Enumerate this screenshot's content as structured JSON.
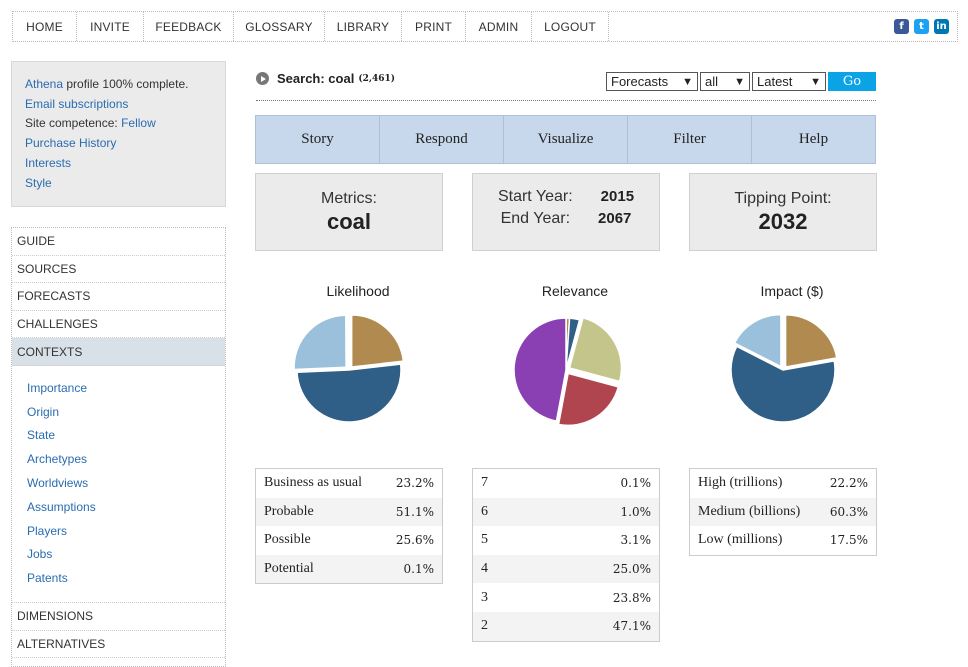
{
  "topnav": {
    "items": [
      "HOME",
      "INVITE",
      "FEEDBACK",
      "GLOSSARY",
      "LIBRARY",
      "PRINT",
      "ADMIN",
      "LOGOUT"
    ],
    "social": [
      {
        "name": "facebook-icon",
        "glyph": "f",
        "color": "#3b5998"
      },
      {
        "name": "twitter-icon",
        "glyph": "t",
        "color": "#1da1f2"
      },
      {
        "name": "linkedin-icon",
        "glyph": "in",
        "color": "#0077b5"
      }
    ]
  },
  "profile": {
    "line1_link": "Athena",
    "line1_rest": " profile 100% complete.",
    "email": "Email subscriptions",
    "competence_label": "Site competence: ",
    "competence_value": "Fellow",
    "purchase": "Purchase History",
    "interests": "Interests",
    "style": "Style"
  },
  "leftnav": {
    "top_items": [
      "GUIDE",
      "SOURCES",
      "FORECASTS",
      "CHALLENGES"
    ],
    "active_item": "CONTEXTS",
    "sub_items": [
      "Importance",
      "Origin",
      "State",
      "Archetypes",
      "Worldviews",
      "Assumptions",
      "Players",
      "Jobs",
      "Patents"
    ],
    "bottom_items": [
      "DIMENSIONS",
      "ALTERNATIVES"
    ]
  },
  "search": {
    "label": "Search: coal",
    "count": "(2,461)",
    "selects": [
      "Forecasts",
      "all",
      "Latest"
    ],
    "go": "Go"
  },
  "tabs": [
    "Story",
    "Respond",
    "Visualize",
    "Filter",
    "Help"
  ],
  "metrics": {
    "label": "Metrics:",
    "value": "coal"
  },
  "years": {
    "start_label": "Start Year:",
    "start_value": "2015",
    "end_label": "End Year:",
    "end_value": "2067"
  },
  "tipping": {
    "label": "Tipping Point:",
    "value": "2032"
  },
  "chart_data": [
    {
      "type": "pie",
      "title": "Likelihood",
      "categories": [
        "Business as usual",
        "Probable",
        "Possible",
        "Potential"
      ],
      "values": [
        23.2,
        51.1,
        25.6,
        0.1
      ],
      "labels": [
        "23.2%",
        "51.1%",
        "25.6%",
        "0.1%"
      ],
      "colors": [
        "#b08a4e",
        "#2f5f86",
        "#9ac0dc",
        "#cccccc"
      ]
    },
    {
      "type": "pie",
      "title": "Relevance",
      "categories": [
        "7",
        "6",
        "5",
        "4",
        "3",
        "2"
      ],
      "values": [
        0.1,
        1.0,
        3.1,
        25.0,
        23.8,
        47.1
      ],
      "labels": [
        "0.1%",
        "1.0%",
        "3.1%",
        "25.0%",
        "23.8%",
        "47.1%"
      ],
      "colors": [
        "#cccccc",
        "#b08a4e",
        "#2f5f86",
        "#c4c58a",
        "#b1454f",
        "#8a3fb2"
      ]
    },
    {
      "type": "pie",
      "title": "Impact ($)",
      "categories": [
        "High (trillions)",
        "Medium (billions)",
        "Low (millions)"
      ],
      "values": [
        22.2,
        60.3,
        17.5
      ],
      "labels": [
        "22.2%",
        "60.3%",
        "17.5%"
      ],
      "colors": [
        "#b08a4e",
        "#2f5f86",
        "#9ac0dc"
      ]
    }
  ]
}
